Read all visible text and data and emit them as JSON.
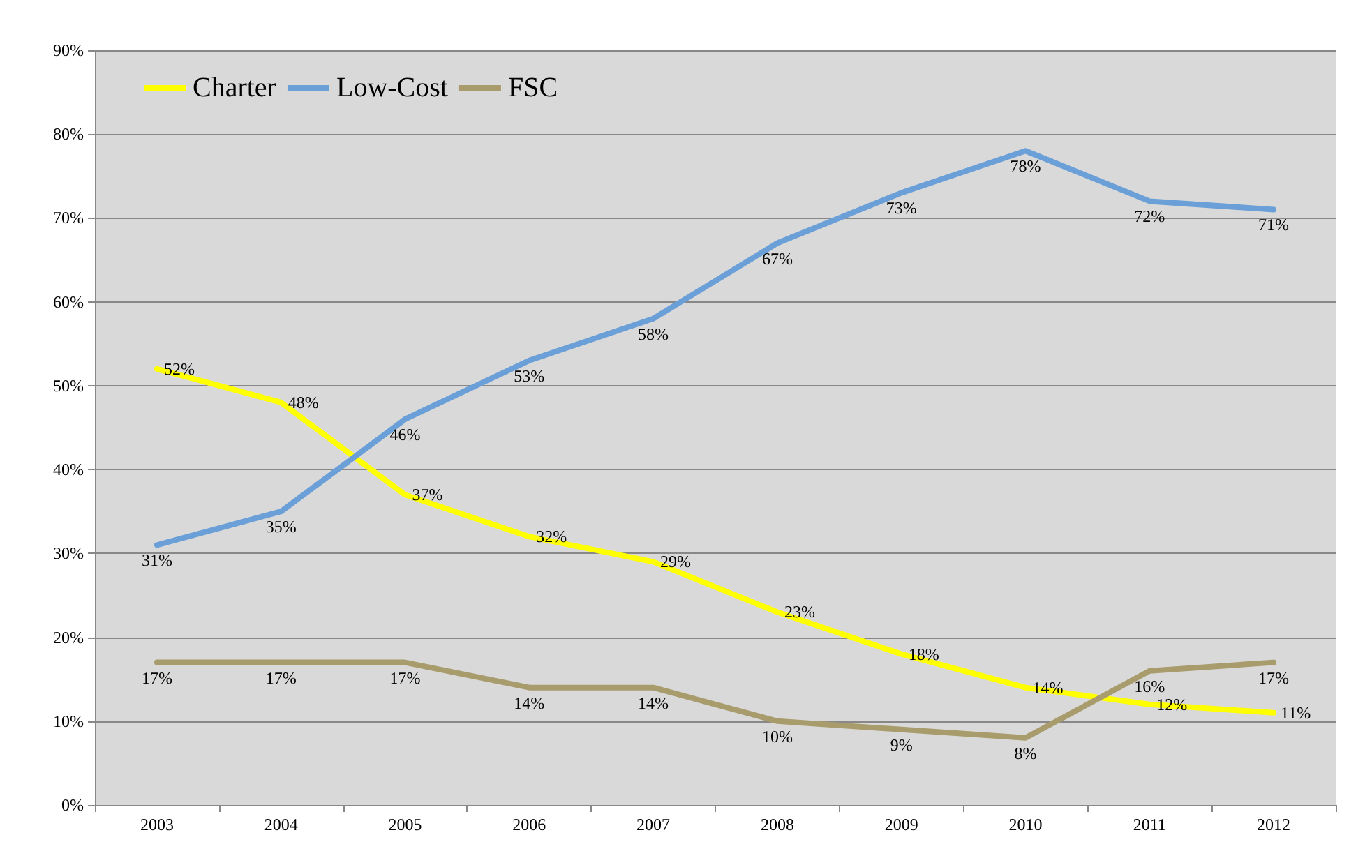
{
  "chart_data": {
    "type": "line",
    "categories": [
      "2003",
      "2004",
      "2005",
      "2006",
      "2007",
      "2008",
      "2009",
      "2010",
      "2011",
      "2012"
    ],
    "series": [
      {
        "name": "Charter",
        "color": "#ffff00",
        "values": [
          52,
          48,
          37,
          32,
          29,
          23,
          18,
          14,
          12,
          11
        ],
        "value_labels": [
          "52%",
          "48%",
          "37%",
          "32%",
          "29%",
          "23%",
          "18%",
          "14%",
          "12%",
          "11%"
        ]
      },
      {
        "name": "Low-Cost",
        "color": "#6a9fd8",
        "values": [
          31,
          35,
          46,
          53,
          58,
          67,
          73,
          78,
          72,
          71
        ],
        "value_labels": [
          "31%",
          "35%",
          "46%",
          "53%",
          "58%",
          "67%",
          "73%",
          "78%",
          "72%",
          "71%"
        ]
      },
      {
        "name": "FSC",
        "color": "#a89b6c",
        "values": [
          17,
          17,
          17,
          14,
          14,
          10,
          9,
          8,
          16,
          17
        ],
        "value_labels": [
          "17%",
          "17%",
          "17%",
          "14%",
          "14%",
          "10%",
          "9%",
          "8%",
          "16%",
          "17%"
        ]
      }
    ],
    "ylim": [
      0,
      90
    ],
    "yticks": [
      {
        "value": 0,
        "label": "0%"
      },
      {
        "value": 10,
        "label": "10%"
      },
      {
        "value": 20,
        "label": "20%"
      },
      {
        "value": 30,
        "label": "30%"
      },
      {
        "value": 40,
        "label": "40%"
      },
      {
        "value": 50,
        "label": "50%"
      },
      {
        "value": 60,
        "label": "60%"
      },
      {
        "value": 70,
        "label": "70%"
      },
      {
        "value": 80,
        "label": "80%"
      },
      {
        "value": 90,
        "label": "90%"
      }
    ],
    "grid": "y",
    "legend": "top left",
    "marker": "none",
    "line_style": "solid"
  }
}
